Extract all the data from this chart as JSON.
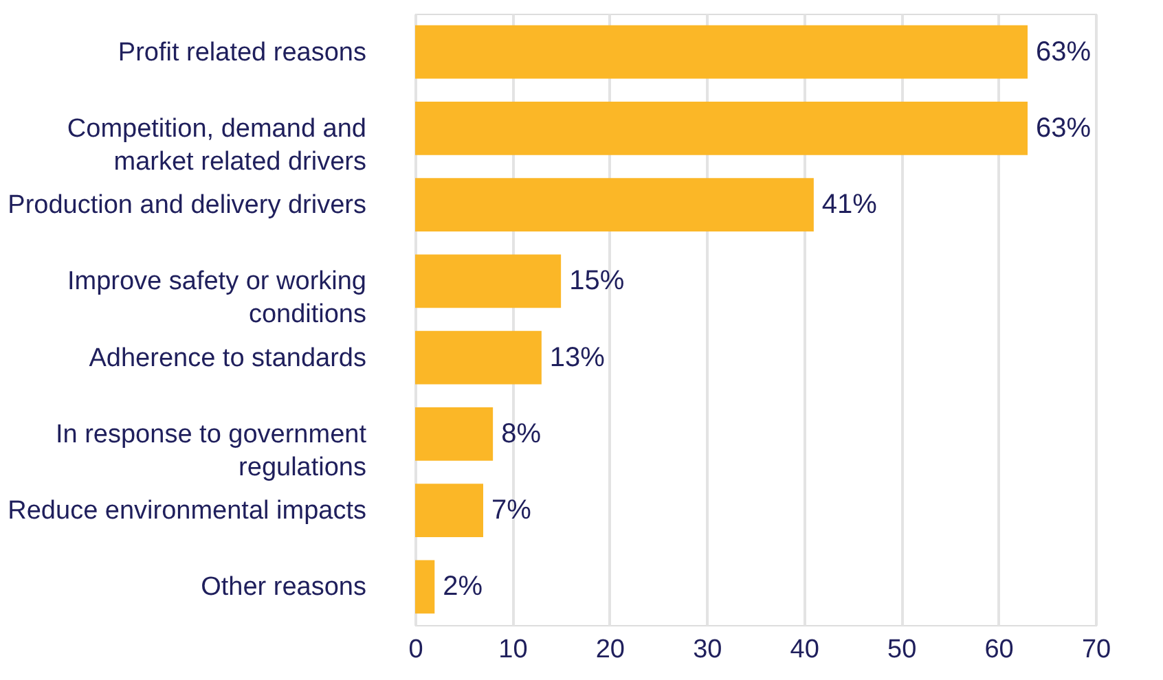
{
  "chart_data": {
    "type": "bar",
    "orientation": "horizontal",
    "categories": [
      "Profit related reasons",
      "Competition, demand and\nmarket related drivers",
      "Production and delivery drivers",
      "Improve safety or working\nconditions",
      "Adherence to standards",
      "In response to government\nregulations",
      "Reduce environmental impacts",
      "Other reasons"
    ],
    "values": [
      63,
      63,
      41,
      15,
      13,
      8,
      7,
      2
    ],
    "value_labels": [
      "63%",
      "63%",
      "41%",
      "15%",
      "13%",
      "8%",
      "7%",
      "2%"
    ],
    "color": "#fbb727",
    "xlim": [
      0,
      70
    ],
    "xticks": [
      0,
      10,
      20,
      30,
      40,
      50,
      60,
      70
    ],
    "grid": "x"
  }
}
